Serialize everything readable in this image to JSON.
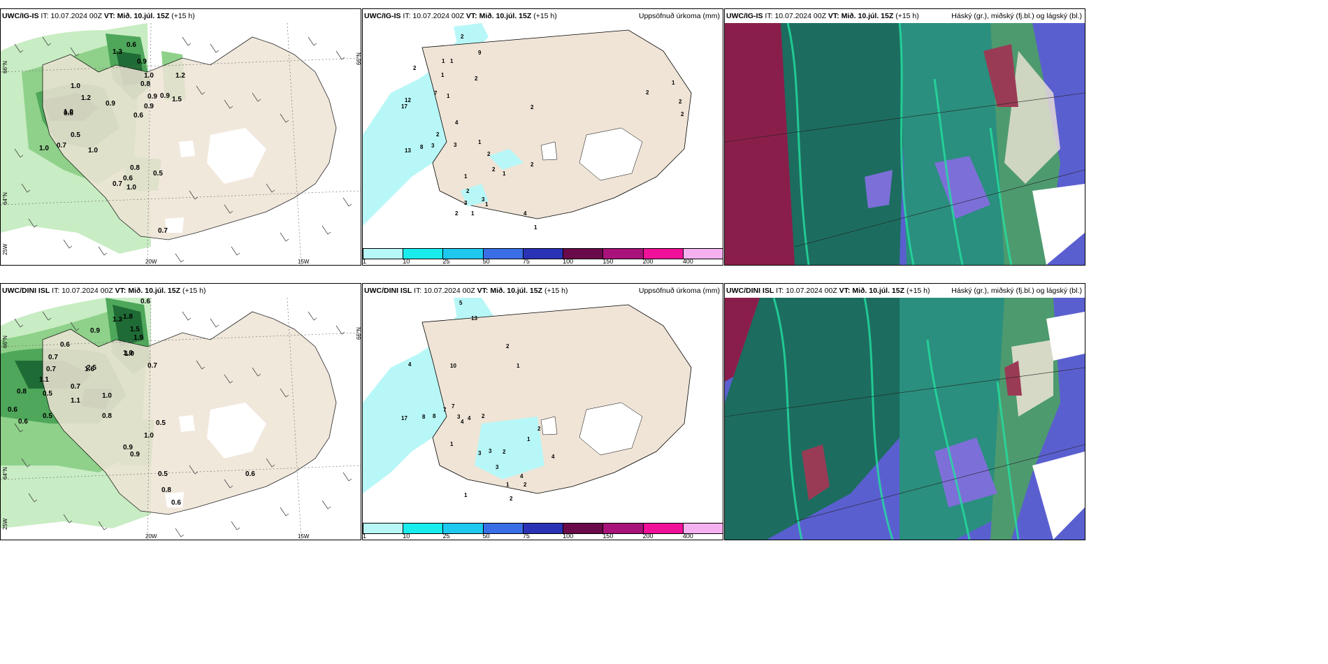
{
  "rows": [
    {
      "model": "UWC/IG-IS",
      "it_label": "IT:",
      "it_value": "10.07.2024 00Z",
      "vt_label": "VT:",
      "vt_value": "Mið. 10.júl. 15Z",
      "lead": "(+15 h)"
    },
    {
      "model": "UWC/DINI ISL",
      "it_label": "IT:",
      "it_value": "10.07.2024 00Z",
      "vt_label": "VT:",
      "vt_value": "Mið. 10.júl. 15Z",
      "lead": "(+15 h)"
    }
  ],
  "precip_title": "Uppsöfnuð úrkoma (mm)",
  "cloud_title": "Háský (gr.), miðský (fj.bl.) og lágský (bl.)",
  "colorbar": {
    "ticks": [
      "1",
      "10",
      "25",
      "50",
      "75",
      "100",
      "150",
      "200",
      "400"
    ],
    "colors": [
      "#b8f7f7",
      "#19ecec",
      "#1ec8ee",
      "#3a6ee6",
      "#2a33b5",
      "#6a0a4a",
      "#a8127a",
      "#f0109a",
      "#f5b0ef"
    ]
  },
  "axis_labels": {
    "lat66": "66°N",
    "lat64": "64°N",
    "lon25": "25W",
    "lon20": "20W",
    "lon15": "15W",
    "lat66b": "66°N"
  },
  "wind_values_top": [
    "0.6",
    "1.3",
    "0.9",
    "1.0",
    "1.0",
    "0.8",
    "1.0",
    "0.9",
    "1.2",
    "1.2",
    "1.5",
    "0.9",
    "0.8",
    "0.5",
    "0.7",
    "1.0",
    "1.0",
    "0.6",
    "0.9",
    "0.9",
    "0.8",
    "0.5",
    "0.6",
    "0.7",
    "1.0",
    "0.7"
  ],
  "wind_values_bottom": [
    "0.6",
    "1.3",
    "1.8",
    "1.5",
    "1.9",
    "1.0",
    "0.9",
    "0.7",
    "0.6",
    "1.0",
    "0.7",
    "0.7",
    "1.6",
    "1.1",
    "2.5",
    "0.8",
    "0.5",
    "0.7",
    "1.0",
    "1.1",
    "0.6",
    "0.6",
    "0.5",
    "0.8",
    "1.0",
    "0.9",
    "0.9",
    "0.5",
    "0.5",
    "0.8",
    "0.6",
    "0.6"
  ],
  "precip_values_top": [
    "2",
    "9",
    "1",
    "1",
    "2",
    "2",
    "1",
    "1",
    "7",
    "12",
    "17",
    "4",
    "2",
    "3",
    "3",
    "13",
    "8",
    "1",
    "2",
    "2",
    "1",
    "1",
    "2",
    "3",
    "1",
    "3",
    "2",
    "1",
    "2",
    "2",
    "1",
    "2",
    "2",
    "2",
    "4",
    "1"
  ],
  "precip_values_bottom": [
    "5",
    "13",
    "2",
    "4",
    "7",
    "10",
    "1",
    "17",
    "8",
    "8",
    "7",
    "3",
    "4",
    "4",
    "2",
    "1",
    "3",
    "3",
    "2",
    "3",
    "4",
    "2",
    "1",
    "2",
    "1",
    "4",
    "2",
    "1"
  ]
}
